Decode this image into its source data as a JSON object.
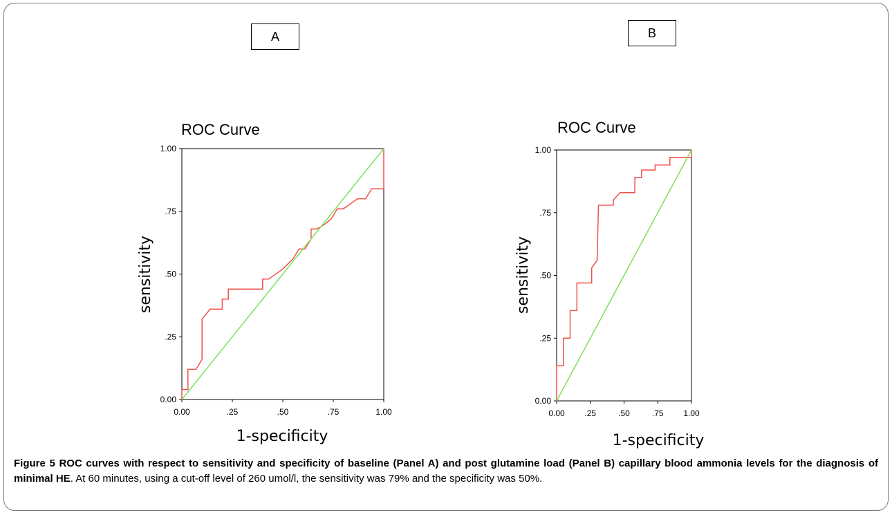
{
  "panels": {
    "a_label": "A",
    "b_label": "B"
  },
  "caption": {
    "figure_label": "Figure 5",
    "bold_text": "ROC curves with respect to sensitivity and specificity of baseline (Panel A) and post glutamine load (Panel B) capillary blood ammonia levels for the diagnosis of minimal HE",
    "normal_text": ". At 60 minutes, using a cut-off level of 260 umol/l, the sensitivity was 79% and the specificity was 50%."
  },
  "colors": {
    "roc_line": "#f0504a",
    "reference_line": "#7de05a",
    "axis": "#000000"
  },
  "chart_data": [
    {
      "type": "line",
      "panel": "A",
      "title": "ROC Curve",
      "xlabel": "1-specificity",
      "ylabel": "sensitivity",
      "xlim": [
        0,
        1
      ],
      "ylim": [
        0,
        1
      ],
      "xticks": [
        "0.00",
        ".25",
        ".50",
        ".75",
        "1.00"
      ],
      "yticks": [
        "0.00",
        ".25",
        ".50",
        ".75",
        "1.00"
      ],
      "grid": false,
      "series": [
        {
          "role": "roc",
          "points": [
            [
              0,
              0
            ],
            [
              0,
              0.04
            ],
            [
              0.03,
              0.04
            ],
            [
              0.03,
              0.12
            ],
            [
              0.07,
              0.12
            ],
            [
              0.1,
              0.16
            ],
            [
              0.1,
              0.32
            ],
            [
              0.14,
              0.36
            ],
            [
              0.2,
              0.36
            ],
            [
              0.2,
              0.4
            ],
            [
              0.23,
              0.4
            ],
            [
              0.23,
              0.44
            ],
            [
              0.4,
              0.44
            ],
            [
              0.4,
              0.48
            ],
            [
              0.43,
              0.48
            ],
            [
              0.5,
              0.52
            ],
            [
              0.55,
              0.56
            ],
            [
              0.58,
              0.6
            ],
            [
              0.61,
              0.6
            ],
            [
              0.64,
              0.64
            ],
            [
              0.64,
              0.68
            ],
            [
              0.67,
              0.68
            ],
            [
              0.71,
              0.7
            ],
            [
              0.74,
              0.72
            ],
            [
              0.77,
              0.76
            ],
            [
              0.8,
              0.76
            ],
            [
              0.87,
              0.8
            ],
            [
              0.91,
              0.8
            ],
            [
              0.94,
              0.84
            ],
            [
              1,
              0.84
            ],
            [
              1,
              1
            ]
          ]
        },
        {
          "role": "reference",
          "points": [
            [
              0,
              0
            ],
            [
              1,
              1
            ]
          ]
        }
      ]
    },
    {
      "type": "line",
      "panel": "B",
      "title": "ROC Curve",
      "xlabel": "1-specificity",
      "ylabel": "sensitivity",
      "xlim": [
        0,
        1
      ],
      "ylim": [
        0,
        1
      ],
      "xticks": [
        "0.00",
        ".25",
        ".50",
        ".75",
        "1.00"
      ],
      "yticks": [
        "0.00",
        ".25",
        ".50",
        ".75",
        "1.00"
      ],
      "grid": false,
      "series": [
        {
          "role": "roc",
          "points": [
            [
              0,
              0
            ],
            [
              0,
              0.14
            ],
            [
              0.05,
              0.14
            ],
            [
              0.05,
              0.25
            ],
            [
              0.1,
              0.25
            ],
            [
              0.1,
              0.36
            ],
            [
              0.15,
              0.36
            ],
            [
              0.15,
              0.47
            ],
            [
              0.26,
              0.47
            ],
            [
              0.26,
              0.53
            ],
            [
              0.3,
              0.56
            ],
            [
              0.31,
              0.78
            ],
            [
              0.42,
              0.78
            ],
            [
              0.42,
              0.8
            ],
            [
              0.47,
              0.83
            ],
            [
              0.58,
              0.83
            ],
            [
              0.58,
              0.89
            ],
            [
              0.63,
              0.89
            ],
            [
              0.63,
              0.92
            ],
            [
              0.73,
              0.92
            ],
            [
              0.73,
              0.94
            ],
            [
              0.84,
              0.94
            ],
            [
              0.84,
              0.97
            ],
            [
              1,
              0.97
            ],
            [
              1,
              1
            ]
          ]
        },
        {
          "role": "reference",
          "points": [
            [
              0,
              0
            ],
            [
              1,
              1
            ]
          ]
        }
      ]
    }
  ]
}
